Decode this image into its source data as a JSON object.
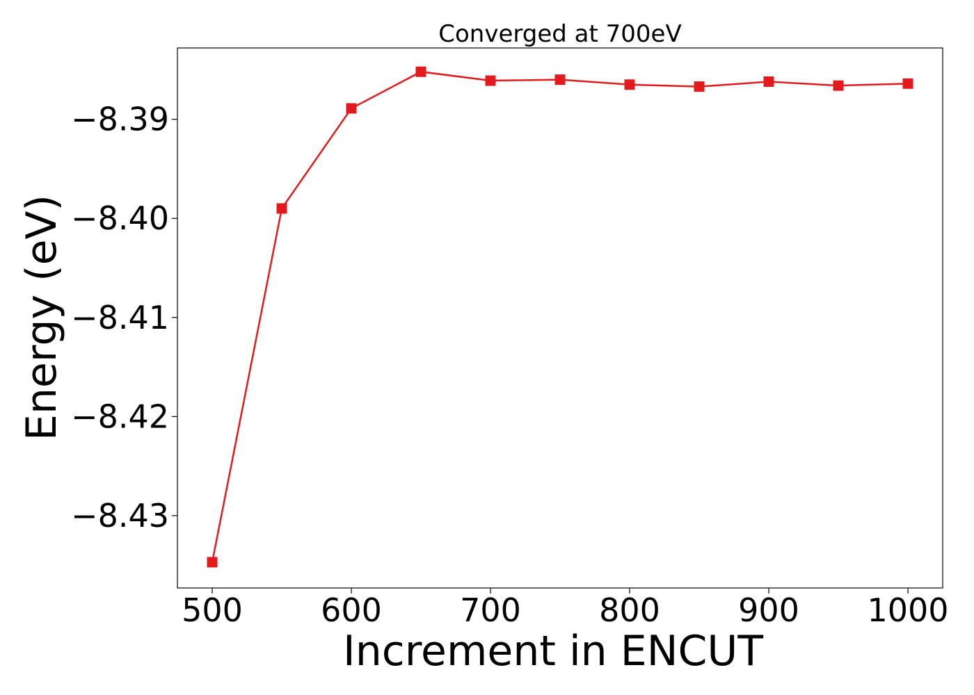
{
  "chart_data": {
    "type": "line",
    "title": "Converged at 700eV",
    "xlabel": "Increment in ENCUT",
    "ylabel": "Energy (eV)",
    "xlim": [
      475,
      1025
    ],
    "ylim": [
      -8.4373,
      -8.3828
    ],
    "x_ticks": [
      500,
      600,
      700,
      800,
      900,
      1000
    ],
    "x_tick_labels": [
      "500",
      "600",
      "700",
      "800",
      "900",
      "1000"
    ],
    "y_ticks": [
      -8.43,
      -8.42,
      -8.41,
      -8.4,
      -8.39
    ],
    "y_tick_labels": [
      "−8.43",
      "−8.42",
      "−8.41",
      "−8.40",
      "−8.39"
    ],
    "grid": false,
    "legend": "none",
    "series": [
      {
        "color": "#e31a1c",
        "marker": "square",
        "x": [
          500,
          550,
          600,
          650,
          700,
          750,
          800,
          850,
          900,
          950,
          1000
        ],
        "y": [
          -8.4347,
          -8.399,
          -8.3889,
          -8.3852,
          -8.3861,
          -8.386,
          -8.3865,
          -8.3867,
          -8.3862,
          -8.3866,
          -8.3864
        ]
      }
    ]
  }
}
